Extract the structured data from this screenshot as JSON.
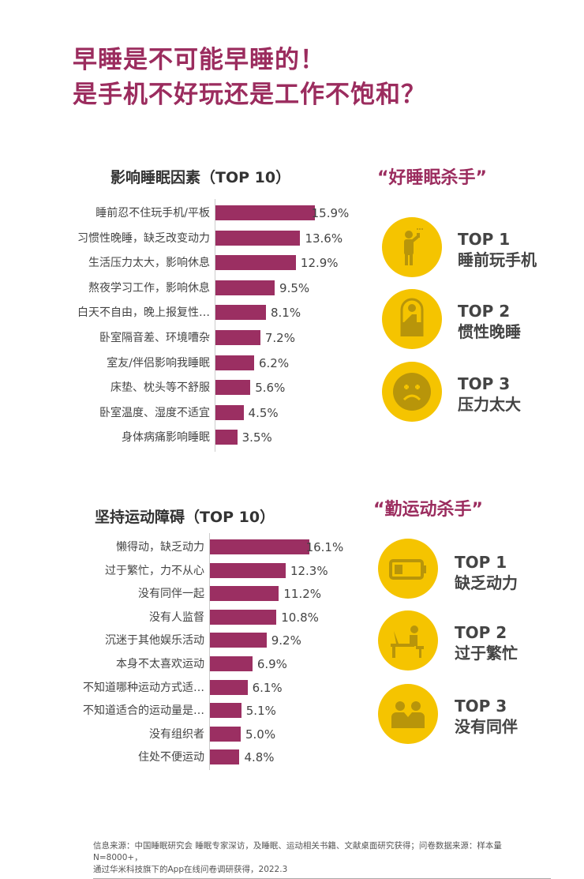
{
  "title": {
    "line1": "早睡是不可能早睡的！",
    "line2": "是手机不好玩还是工作不饱和？"
  },
  "chart_data": [
    {
      "type": "bar",
      "orientation": "horizontal",
      "title": "影响睡眠因素（TOP 10）",
      "categories": [
        "睡前忍不住玩手机/平板",
        "习惯性晚睡，缺乏改变动力",
        "生活压力太大，影响休息",
        "熬夜学习工作，影响休息",
        "白天不自由，晚上报复性…",
        "卧室隔音差、环境嘈杂",
        "室友/伴侣影响我睡眠",
        "床垫、枕头等不舒服",
        "卧室温度、湿度不适宜",
        "身体病痛影响睡眠"
      ],
      "values": [
        15.9,
        13.6,
        12.9,
        9.5,
        8.1,
        7.2,
        6.2,
        5.6,
        4.5,
        3.5
      ],
      "labels": [
        "15.9%",
        "13.6%",
        "12.9%",
        "9.5%",
        "8.1%",
        "7.2%",
        "6.2%",
        "5.6%",
        "4.5%",
        "3.5%"
      ],
      "unit": "%"
    },
    {
      "type": "bar",
      "orientation": "horizontal",
      "title": "坚持运动障碍（TOP 10）",
      "categories": [
        "懒得动，缺乏动力",
        "过于繁忙，力不从心",
        "没有同伴一起",
        "没有人监督",
        "沉迷于其他娱乐活动",
        "本身不太喜欢运动",
        "不知道哪种运动方式适…",
        "不知道适合的运动量是…",
        "没有组织者",
        "住处不便运动"
      ],
      "values": [
        16.1,
        12.3,
        11.2,
        10.8,
        9.2,
        6.9,
        6.1,
        5.1,
        5.0,
        4.8
      ],
      "labels": [
        "16.1%",
        "12.3%",
        "11.2%",
        "10.8%",
        "9.2%",
        "6.9%",
        "6.1%",
        "5.1%",
        "5.0%",
        "4.8%"
      ],
      "unit": "%"
    }
  ],
  "sleep_killers": {
    "heading": "“好睡眠杀手”",
    "items": [
      {
        "rank": "TOP 1",
        "text": "睡前玩手机",
        "icon": "person-phone-icon"
      },
      {
        "rank": "TOP 2",
        "text": "惯性晚睡",
        "icon": "person-in-bed-icon"
      },
      {
        "rank": "TOP 3",
        "text": "压力太大",
        "icon": "stressed-face-icon"
      }
    ]
  },
  "exercise_killers": {
    "heading": "“勤运动杀手”",
    "items": [
      {
        "rank": "TOP 1",
        "text": "缺乏动力",
        "icon": "low-battery-icon"
      },
      {
        "rank": "TOP 2",
        "text": "过于繁忙",
        "icon": "person-at-desk-icon"
      },
      {
        "rank": "TOP 3",
        "text": "没有同伴",
        "icon": "two-people-icon"
      }
    ]
  },
  "colors": {
    "accent": "#9b2c5e",
    "bar": "#9b2f62",
    "yellow": "#f5c400"
  },
  "footer": {
    "line1": "信息来源：中国睡眠研究会 睡眠专家深访，及睡眠、运动相关书籍、文献桌面研究获得；问卷数据来源：样本量N=8000+，",
    "line2": "通过华米科技旗下的App在线问卷调研获得，2022.3"
  }
}
